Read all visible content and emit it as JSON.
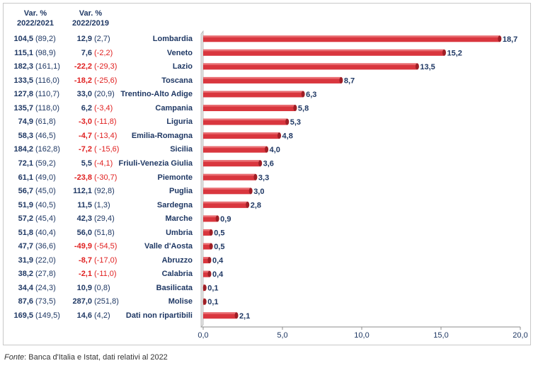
{
  "columns": {
    "col1": {
      "line1": "Var. %",
      "line2": "2022/2021"
    },
    "col2": {
      "line1": "Var. %",
      "line2": "2022/2019"
    }
  },
  "rows": [
    {
      "v1": "104,5",
      "p1": "(89,2)",
      "v2": "12,9",
      "p2": "(2,7)",
      "v2_neg": false,
      "p2_neg": false
    },
    {
      "v1": "115,1",
      "p1": "(98,9)",
      "v2": "7,6",
      "p2": "(-2,2)",
      "v2_neg": false,
      "p2_neg": true
    },
    {
      "v1": "182,3",
      "p1": "(161,1)",
      "v2": "-22,2",
      "p2": "(-29,3)",
      "v2_neg": true,
      "p2_neg": true
    },
    {
      "v1": "133,5",
      "p1": "(116,0)",
      "v2": "-18,2",
      "p2": "(-25,6)",
      "v2_neg": true,
      "p2_neg": true
    },
    {
      "v1": "127,8",
      "p1": "(110,7)",
      "v2": "33,0",
      "p2": "(20,9)",
      "v2_neg": false,
      "p2_neg": false
    },
    {
      "v1": "135,7",
      "p1": "(118,0)",
      "v2": "6,2",
      "p2": "(-3,4)",
      "v2_neg": false,
      "p2_neg": true
    },
    {
      "v1": "74,9",
      "p1": "(61,8)",
      "v2": "-3,0",
      "p2": "(-11,8)",
      "v2_neg": true,
      "p2_neg": true
    },
    {
      "v1": "58,3",
      "p1": "(46,5)",
      "v2": "-4,7",
      "p2": "(-13,4)",
      "v2_neg": true,
      "p2_neg": true
    },
    {
      "v1": "184,2",
      "p1": "(162,8)",
      "v2": "-7,2",
      "p2": "( -15,6)",
      "v2_neg": true,
      "p2_neg": true
    },
    {
      "v1": "72,1",
      "p1": "(59,2)",
      "v2": "5,5",
      "p2": "(-4,1)",
      "v2_neg": false,
      "p2_neg": true
    },
    {
      "v1": "61,1",
      "p1": "(49,0)",
      "v2": "-23,8",
      "p2": "(-30,7)",
      "v2_neg": true,
      "p2_neg": true
    },
    {
      "v1": "56,7",
      "p1": "(45,0)",
      "v2": "112,1",
      "p2": "(92,8)",
      "v2_neg": false,
      "p2_neg": false
    },
    {
      "v1": "51,9",
      "p1": "(40,5)",
      "v2": "11,5",
      "p2": "(1,3)",
      "v2_neg": false,
      "p2_neg": false
    },
    {
      "v1": "57,2",
      "p1": "(45,4)",
      "v2": "42,3",
      "p2": "(29,4)",
      "v2_neg": false,
      "p2_neg": false
    },
    {
      "v1": "51,8",
      "p1": "(40,4)",
      "v2": "56,0",
      "p2": "(51,8)",
      "v2_neg": false,
      "p2_neg": false
    },
    {
      "v1": "47,7",
      "p1": "(36,6)",
      "v2": "-49,9",
      "p2": "(-54,5)",
      "v2_neg": true,
      "p2_neg": true
    },
    {
      "v1": "31,9",
      "p1": "(22,0)",
      "v2": "-8,7",
      "p2": "(-17,0)",
      "v2_neg": true,
      "p2_neg": true
    },
    {
      "v1": "38,2",
      "p1": "(27,8)",
      "v2": "-2,1",
      "p2": "(-11,0)",
      "v2_neg": true,
      "p2_neg": true
    },
    {
      "v1": "34,4",
      "p1": "(24,3)",
      "v2": "10,9",
      "p2": "(0,8)",
      "v2_neg": false,
      "p2_neg": false
    },
    {
      "v1": "87,6",
      "p1": "(73,5)",
      "v2": "287,0",
      "p2": "(251,8)",
      "v2_neg": false,
      "p2_neg": false
    },
    {
      "v1": "169,5",
      "p1": "(149,5)",
      "v2": "14,6",
      "p2": "(4,2)",
      "v2_neg": false,
      "p2_neg": false
    }
  ],
  "source": {
    "label": "Fonte",
    "text": ": Banca d'Italia e Istat, dati relativi al 2022"
  },
  "colors": {
    "bar": "#d9363e",
    "bar_dark": "#9e1f26",
    "text": "#1f3864",
    "negative": "#e02020",
    "axis": "#8c8c8c"
  },
  "chart_data": {
    "type": "bar",
    "orientation": "horizontal",
    "categories": [
      "Lombardia",
      "Veneto",
      "Lazio",
      "Toscana",
      "Trentino-Alto Adige",
      "Campania",
      "Liguria",
      "Emilia-Romagna",
      "Sicilia",
      "Friuli-Venezia Giulia",
      "Piemonte",
      "Puglia",
      "Sardegna",
      "Marche",
      "Umbria",
      "Valle d'Aosta",
      "Abruzzo",
      "Calabria",
      "Basilicata",
      "Molise",
      "Dati non ripartibili"
    ],
    "values": [
      18.7,
      15.2,
      13.5,
      8.7,
      6.3,
      5.8,
      5.3,
      4.8,
      4.0,
      3.6,
      3.3,
      3.0,
      2.8,
      0.9,
      0.5,
      0.5,
      0.4,
      0.4,
      0.1,
      0.1,
      2.1
    ],
    "value_labels": [
      "18,7",
      "15,2",
      "13,5",
      "8,7",
      "6,3",
      "5,8",
      "5,3",
      "4,8",
      "4,0",
      "3,6",
      "3,3",
      "3,0",
      "2,8",
      "0,9",
      "0,5",
      "0,5",
      "0,4",
      "0,4",
      "0,1",
      "0,1",
      "2,1"
    ],
    "xlim": [
      0,
      20
    ],
    "ticks": [
      0,
      5,
      10,
      15,
      20
    ],
    "tick_labels": [
      "0,0",
      "5,0",
      "10,0",
      "15,0",
      "20,0"
    ],
    "title": "",
    "xlabel": "",
    "ylabel": ""
  }
}
